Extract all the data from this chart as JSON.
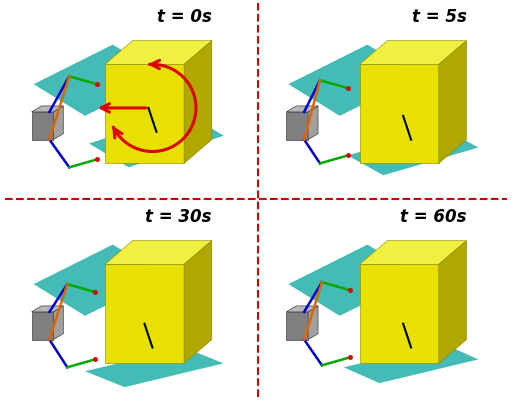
{
  "labels": [
    "t = 0s",
    "t = 5s",
    "t = 30s",
    "t = 60s"
  ],
  "bg_color": "#ffffff",
  "divider_color": "#cc0000",
  "divider_lw": 1.5,
  "divider_ls": "--",
  "label_fontsize": 12,
  "teal": "#3ab8b0",
  "yellow_front": "#e8e000",
  "yellow_top": "#f0f040",
  "yellow_right": "#b0a800",
  "gray_front": "#808080",
  "gray_side": "#a0a0a0",
  "gray_top": "#b8b8b8",
  "dark_gray": "#404040",
  "blue": "#0000cc",
  "orange": "#dd6600",
  "green": "#00aa00",
  "red": "#dd0000",
  "black": "#000000"
}
